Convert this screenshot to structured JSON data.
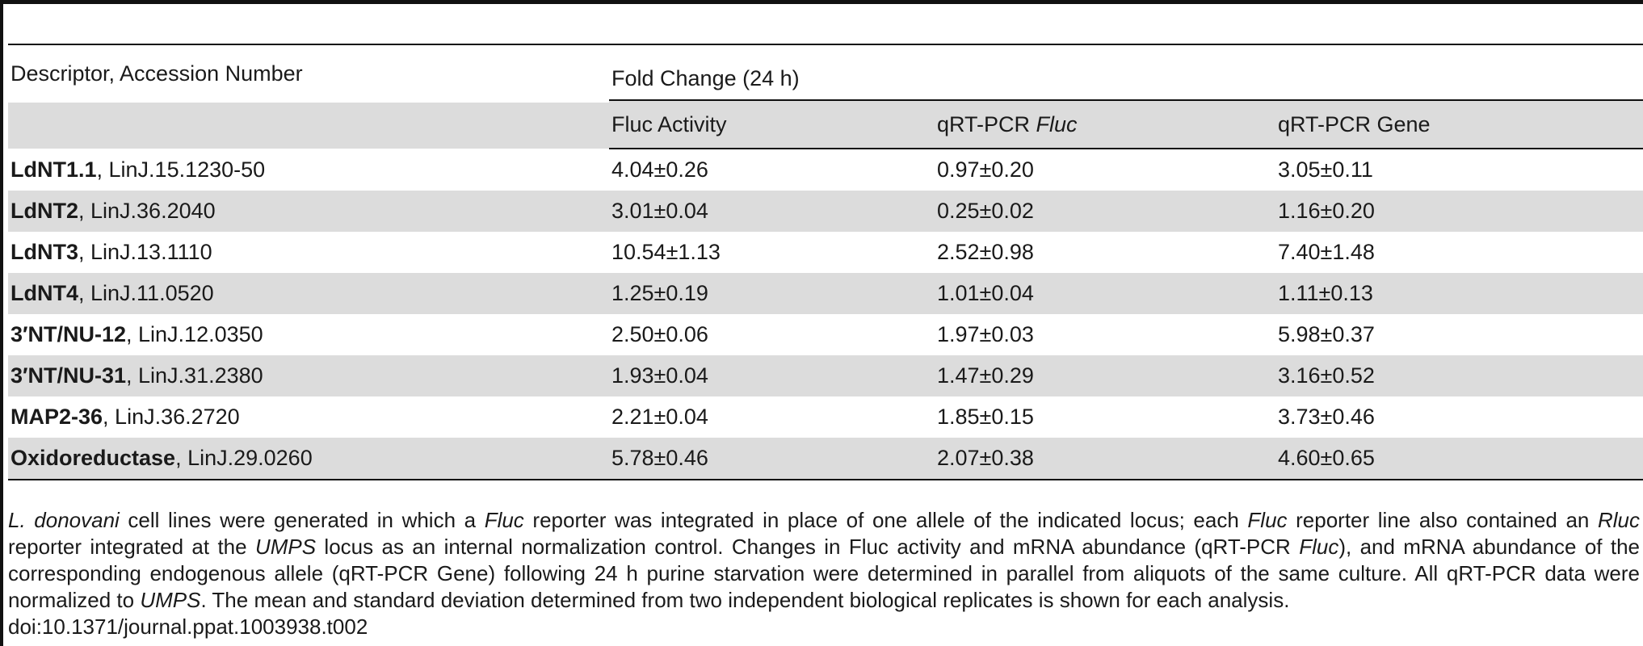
{
  "table": {
    "header": {
      "descriptor_label": "Descriptor, Accession Number",
      "group_label": "Fold Change (24 h)",
      "sub_columns": {
        "fluc_activity": "Fluc Activity",
        "qrt_fluc_prefix": "qRT-PCR ",
        "qrt_fluc_italic": "Fluc",
        "qrt_gene": "qRT-PCR Gene"
      }
    },
    "rows": [
      {
        "name": "LdNT1.1",
        "accession": ", LinJ.15.1230-50",
        "fluc_activity": "4.04±0.26",
        "qrt_fluc": "0.97±0.20",
        "qrt_gene": "3.05±0.11"
      },
      {
        "name": "LdNT2",
        "accession": ", LinJ.36.2040",
        "fluc_activity": "3.01±0.04",
        "qrt_fluc": "0.25±0.02",
        "qrt_gene": "1.16±0.20"
      },
      {
        "name": "LdNT3",
        "accession": ", LinJ.13.1110",
        "fluc_activity": "10.54±1.13",
        "qrt_fluc": "2.52±0.98",
        "qrt_gene": "7.40±1.48"
      },
      {
        "name": "LdNT4",
        "accession": ", LinJ.11.0520",
        "fluc_activity": "1.25±0.19",
        "qrt_fluc": "1.01±0.04",
        "qrt_gene": "1.11±0.13"
      },
      {
        "name": "3′NT/NU-12",
        "accession": ", LinJ.12.0350",
        "fluc_activity": "2.50±0.06",
        "qrt_fluc": "1.97±0.03",
        "qrt_gene": "5.98±0.37"
      },
      {
        "name": "3′NT/NU-31",
        "accession": ", LinJ.31.2380",
        "fluc_activity": "1.93±0.04",
        "qrt_fluc": "1.47±0.29",
        "qrt_gene": "3.16±0.52"
      },
      {
        "name": "MAP2-36",
        "accession": ", LinJ.36.2720",
        "fluc_activity": "2.21±0.04",
        "qrt_fluc": "1.85±0.15",
        "qrt_gene": "3.73±0.46"
      },
      {
        "name": "Oxidoreductase",
        "accession": ", LinJ.29.0260",
        "fluc_activity": "5.78±0.46",
        "qrt_fluc": "2.07±0.38",
        "qrt_gene": "4.60±0.65"
      }
    ]
  },
  "caption": {
    "s1": "L. donovani",
    "s2": " cell lines were generated in which a ",
    "s3": "Fluc",
    "s4": " reporter was integrated in place of one allele of the indicated locus; each ",
    "s5": "Fluc",
    "s6": " reporter line also contained an ",
    "s7": "Rluc",
    "s8": " reporter integrated at the ",
    "s9": "UMPS",
    "s10": " locus as an internal normalization control. Changes in Fluc activity and mRNA abundance (qRT-PCR ",
    "s11": "Fluc",
    "s12": "), and mRNA abundance of the corresponding endogenous allele (qRT-PCR Gene) following 24 h purine starvation were determined in parallel from aliquots of the same culture. All qRT-PCR data were normalized to ",
    "s13": "UMPS",
    "s14": ". The mean and standard deviation determined from two independent biological replicates is shown for each analysis.",
    "doi": "doi:10.1371/journal.ppat.1003938.t002"
  }
}
